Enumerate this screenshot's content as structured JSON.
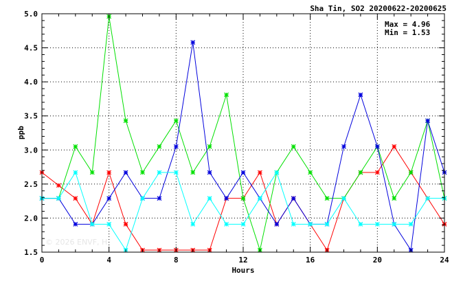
{
  "chart_data": {
    "type": "line",
    "title": "Sha Tin, SO2 20200622-20200625",
    "xlabel": "Hours",
    "ylabel": "ppb",
    "xlim": [
      0,
      24
    ],
    "ylim": [
      1.5,
      5.0
    ],
    "xticks": [
      0,
      4,
      8,
      12,
      16,
      20,
      24
    ],
    "yticks": [
      1.5,
      2.0,
      2.5,
      3.0,
      3.5,
      4.0,
      4.5,
      5.0
    ],
    "ytick_labels": [
      "1.5",
      "2.0",
      "2.5",
      "3.0",
      "3.5",
      "4.0",
      "4.5",
      "5.0"
    ],
    "grid": true,
    "stats": {
      "max": "Max = 4.96",
      "min": "Min = 1.53"
    },
    "watermark": "© 2026 ENVF, H",
    "x": [
      0,
      1,
      2,
      3,
      4,
      5,
      6,
      7,
      8,
      9,
      10,
      11,
      12,
      13,
      14,
      15,
      16,
      17,
      18,
      19,
      20,
      21,
      22,
      23,
      24
    ],
    "series": [
      {
        "color": "#ff0000",
        "values": [
          2.67,
          2.48,
          2.29,
          1.91,
          2.67,
          1.91,
          1.53,
          1.53,
          1.53,
          1.53,
          1.53,
          2.29,
          2.29,
          2.67,
          1.91,
          2.29,
          1.91,
          1.53,
          2.29,
          2.67,
          2.67,
          3.05,
          2.67,
          2.29,
          1.91
        ]
      },
      {
        "color": "#00e000",
        "values": [
          2.29,
          2.29,
          3.05,
          2.67,
          4.96,
          3.43,
          2.67,
          3.05,
          3.43,
          2.67,
          3.05,
          3.81,
          2.29,
          1.53,
          2.67,
          3.05,
          2.67,
          2.29,
          2.29,
          2.67,
          3.05,
          2.29,
          2.67,
          3.43,
          2.29
        ]
      },
      {
        "color": "#0000dd",
        "values": [
          2.29,
          2.29,
          1.91,
          1.91,
          2.29,
          2.67,
          2.29,
          2.29,
          3.05,
          4.58,
          2.67,
          2.29,
          2.67,
          2.29,
          1.91,
          2.29,
          1.91,
          1.91,
          3.05,
          3.81,
          3.05,
          1.91,
          1.53,
          3.43,
          2.67
        ]
      },
      {
        "color": "#00ffff",
        "values": [
          2.29,
          2.29,
          2.67,
          1.91,
          1.91,
          1.53,
          2.29,
          2.67,
          2.67,
          1.91,
          2.29,
          1.91,
          1.91,
          2.29,
          2.67,
          1.91,
          1.91,
          1.91,
          2.29,
          1.91,
          1.91,
          1.91,
          1.91,
          2.29,
          2.29
        ]
      }
    ]
  }
}
